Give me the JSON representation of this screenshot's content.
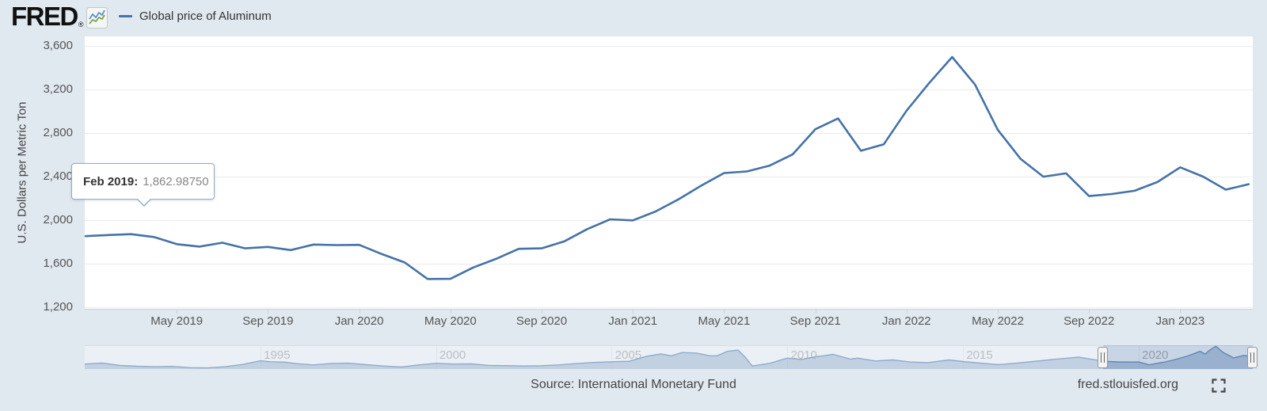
{
  "header": {
    "logo_text": "FRED",
    "registered_mark": "®",
    "legend_label": "Global price of Aluminum"
  },
  "tooltip": {
    "label": "Feb 2019:",
    "value": "1,862.98750"
  },
  "footer": {
    "source": "Source: International Monetary Fund",
    "site_link": "fred.stlouisfed.org"
  },
  "colors": {
    "background": "#e1e9f0",
    "series_blue": "#4572a7",
    "navigator_line": "#5b84b4",
    "navigator_fill": "rgba(91,132,180,0.45)",
    "tooltip_border": "#95abc2"
  },
  "chart_data": {
    "type": "line",
    "title": "Global price of Aluminum",
    "ylabel": "U.S. Dollars per Metric Ton",
    "ylim": [
      1200,
      3600
    ],
    "grid": "horizontal",
    "y_ticks": [
      3600,
      3200,
      2800,
      2400,
      2000,
      1600,
      1200
    ],
    "y_tick_labels": [
      "3,600",
      "3,200",
      "2,800",
      "2,400",
      "2,000",
      "1,600",
      "1,200"
    ],
    "x_tick_labels": [
      "May 2019",
      "Sep 2019",
      "Jan 2020",
      "May 2020",
      "Sep 2020",
      "Jan 2021",
      "May 2021",
      "Sep 2021",
      "Jan 2022",
      "May 2022",
      "Sep 2022",
      "Jan 2023"
    ],
    "x_range": [
      "2019-01",
      "2023-04"
    ],
    "frequency": "monthly",
    "highlighted_point": {
      "label": "Feb 2019",
      "value": 1862.9875
    },
    "series": [
      {
        "name": "Global price of Aluminum",
        "values": [
          1853,
          1863,
          1871,
          1845,
          1780,
          1757,
          1793,
          1741,
          1754,
          1725,
          1776,
          1771,
          1773,
          1688,
          1611,
          1460,
          1461,
          1565,
          1644,
          1737,
          1741,
          1806,
          1918,
          2007,
          1998,
          2080,
          2191,
          2317,
          2433,
          2447,
          2501,
          2603,
          2835,
          2934,
          2637,
          2696,
          3005,
          3261,
          3498,
          3246,
          2830,
          2563,
          2399,
          2430,
          2221,
          2240,
          2270,
          2350,
          2485,
          2400,
          2280,
          2330
        ]
      }
    ]
  },
  "navigator": {
    "year_labels": [
      "1995",
      "2000",
      "2005",
      "2010",
      "2015",
      "2020"
    ],
    "range_start_year": 1990,
    "range_end_year": 2023.25,
    "selected_start": "2019-01",
    "selected_end": "2023-04",
    "series": [
      [
        1990.0,
        1550
      ],
      [
        1990.5,
        1650
      ],
      [
        1991.0,
        1400
      ],
      [
        1991.5,
        1300
      ],
      [
        1992.0,
        1250
      ],
      [
        1992.5,
        1290
      ],
      [
        1993.0,
        1150
      ],
      [
        1993.5,
        1120
      ],
      [
        1994.0,
        1250
      ],
      [
        1994.5,
        1500
      ],
      [
        1995.0,
        1900
      ],
      [
        1995.3,
        1800
      ],
      [
        1995.7,
        1750
      ],
      [
        1996.0,
        1600
      ],
      [
        1996.5,
        1450
      ],
      [
        1997.0,
        1600
      ],
      [
        1997.5,
        1640
      ],
      [
        1998.0,
        1480
      ],
      [
        1998.5,
        1330
      ],
      [
        1999.0,
        1220
      ],
      [
        1999.5,
        1450
      ],
      [
        2000.0,
        1620
      ],
      [
        2000.5,
        1550
      ],
      [
        2001.0,
        1560
      ],
      [
        2001.5,
        1400
      ],
      [
        2002.0,
        1370
      ],
      [
        2002.5,
        1330
      ],
      [
        2003.0,
        1360
      ],
      [
        2003.5,
        1450
      ],
      [
        2004.0,
        1600
      ],
      [
        2004.5,
        1720
      ],
      [
        2005.0,
        1800
      ],
      [
        2005.5,
        1850
      ],
      [
        2006.0,
        2400
      ],
      [
        2006.4,
        2650
      ],
      [
        2006.7,
        2450
      ],
      [
        2007.0,
        2800
      ],
      [
        2007.4,
        2750
      ],
      [
        2007.8,
        2450
      ],
      [
        2008.0,
        2450
      ],
      [
        2008.3,
        2950
      ],
      [
        2008.6,
        3070
      ],
      [
        2008.8,
        2300
      ],
      [
        2009.0,
        1330
      ],
      [
        2009.5,
        1620
      ],
      [
        2010.0,
        2200
      ],
      [
        2010.4,
        2050
      ],
      [
        2010.8,
        2350
      ],
      [
        2011.0,
        2440
      ],
      [
        2011.3,
        2600
      ],
      [
        2011.8,
        2080
      ],
      [
        2012.0,
        2200
      ],
      [
        2012.5,
        1880
      ],
      [
        2013.0,
        2000
      ],
      [
        2013.5,
        1770
      ],
      [
        2014.0,
        1700
      ],
      [
        2014.6,
        2000
      ],
      [
        2015.0,
        1820
      ],
      [
        2015.5,
        1640
      ],
      [
        2016.0,
        1480
      ],
      [
        2016.5,
        1630
      ],
      [
        2017.0,
        1820
      ],
      [
        2017.7,
        2100
      ],
      [
        2018.0,
        2200
      ],
      [
        2018.3,
        2300
      ],
      [
        2018.7,
        2050
      ],
      [
        2019.0,
        1853
      ],
      [
        2019.4,
        1780
      ],
      [
        2019.8,
        1760
      ],
      [
        2020.0,
        1773
      ],
      [
        2020.3,
        1460
      ],
      [
        2020.7,
        1740
      ],
      [
        2021.0,
        1998
      ],
      [
        2021.4,
        2433
      ],
      [
        2021.75,
        2934
      ],
      [
        2021.9,
        2637
      ],
      [
        2022.0,
        3005
      ],
      [
        2022.2,
        3498
      ],
      [
        2022.4,
        2830
      ],
      [
        2022.7,
        2221
      ],
      [
        2023.0,
        2485
      ],
      [
        2023.25,
        2330
      ]
    ]
  }
}
